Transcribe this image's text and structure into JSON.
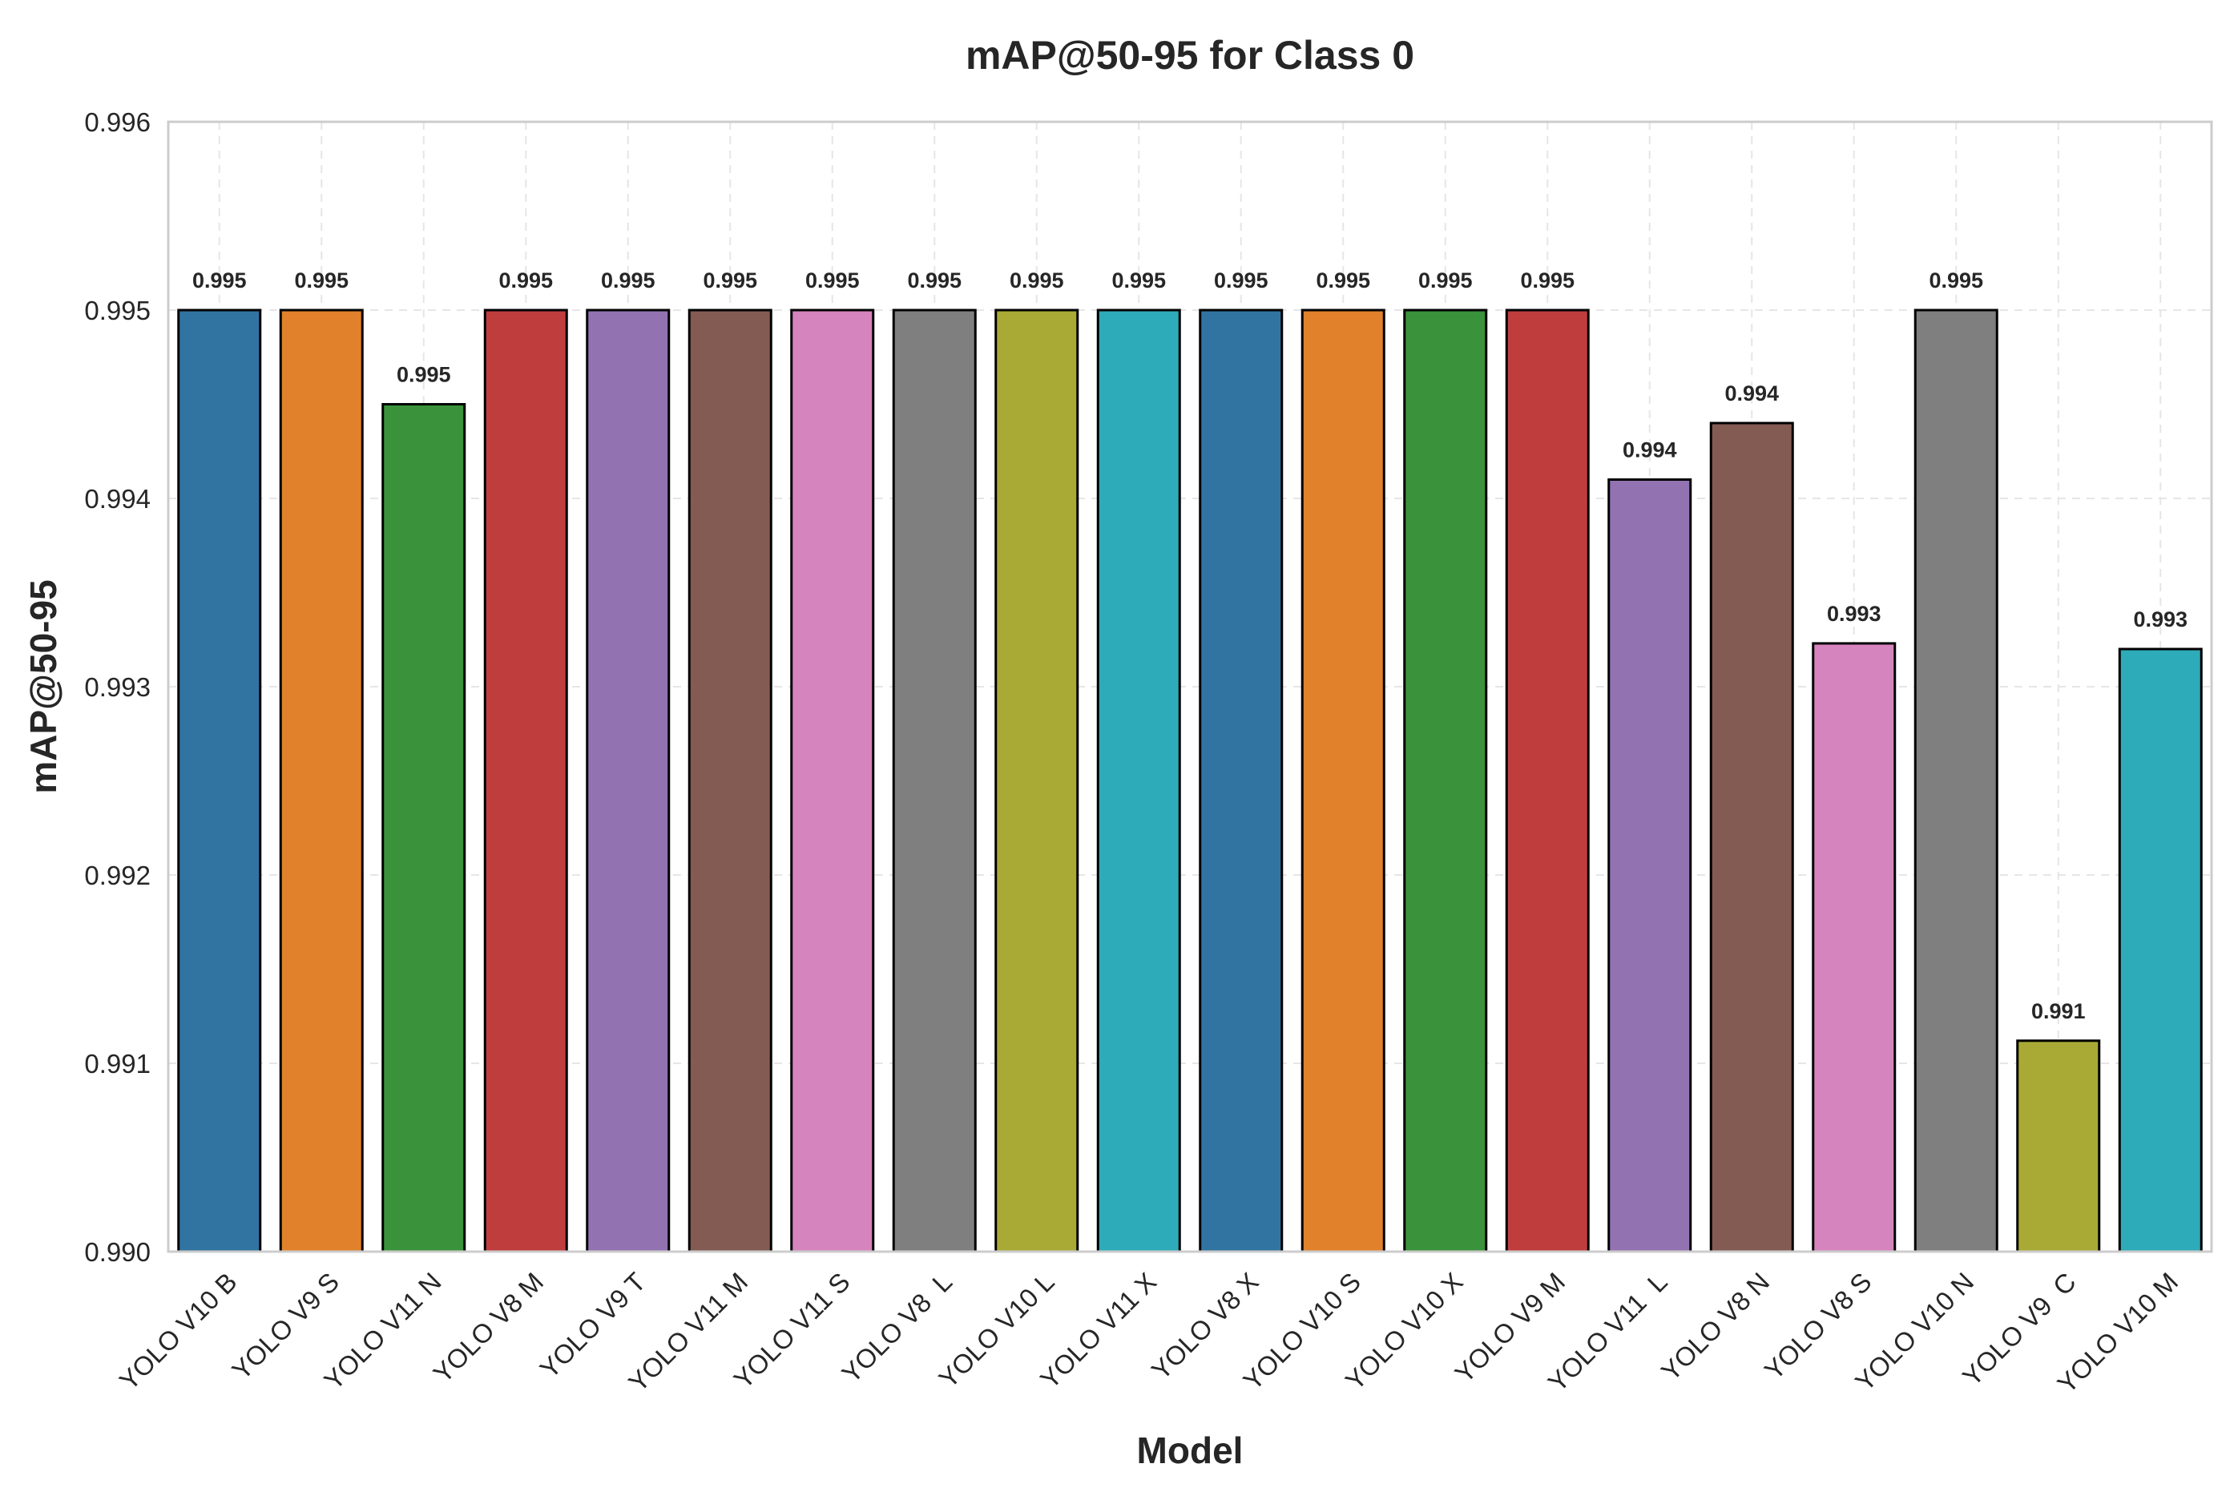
{
  "chart_data": {
    "type": "bar",
    "title": "mAP@50-95 for Class 0",
    "xlabel": "Model",
    "ylabel": "mAP@50-95",
    "ylim": [
      0.99,
      0.996
    ],
    "yticks": [
      "0.990",
      "0.991",
      "0.992",
      "0.993",
      "0.994",
      "0.995",
      "0.996"
    ],
    "grid": true,
    "categories": [
      "YOLO V10 B",
      "YOLO V9 S",
      "YOLO V11 N",
      "YOLO V8 M",
      "YOLO V9 T",
      "YOLO V11 M",
      "YOLO V11 S",
      "YOLO V8  L",
      "YOLO V10 L",
      "YOLO V11 X",
      "YOLO V8 X",
      "YOLO V10 S",
      "YOLO V10 X",
      "YOLO V9 M",
      "YOLO V11  L",
      "YOLO V8 N",
      "YOLO V8 S",
      "YOLO V10 N",
      "YOLO V9  C",
      "YOLO V10 M"
    ],
    "values": [
      0.995,
      0.995,
      0.9945,
      0.995,
      0.995,
      0.995,
      0.995,
      0.995,
      0.995,
      0.995,
      0.995,
      0.995,
      0.995,
      0.995,
      0.9941,
      0.9944,
      0.99323,
      0.995,
      0.99112,
      0.9932
    ],
    "labels": [
      "0.995",
      "0.995",
      "0.995",
      "0.995",
      "0.995",
      "0.995",
      "0.995",
      "0.995",
      "0.995",
      "0.995",
      "0.995",
      "0.995",
      "0.995",
      "0.995",
      "0.994",
      "0.994",
      "0.993",
      "0.995",
      "0.991",
      "0.993"
    ],
    "colors": [
      "#3274a1",
      "#e1812c",
      "#3a923a",
      "#c03d3e",
      "#9372b2",
      "#845b53",
      "#d684bd",
      "#7f7f7f",
      "#a9aa35",
      "#2eabb8",
      "#3274a1",
      "#e1812c",
      "#3a923a",
      "#c03d3e",
      "#9372b2",
      "#845b53",
      "#d684bd",
      "#7f7f7f",
      "#a9aa35",
      "#2eabb8"
    ]
  }
}
